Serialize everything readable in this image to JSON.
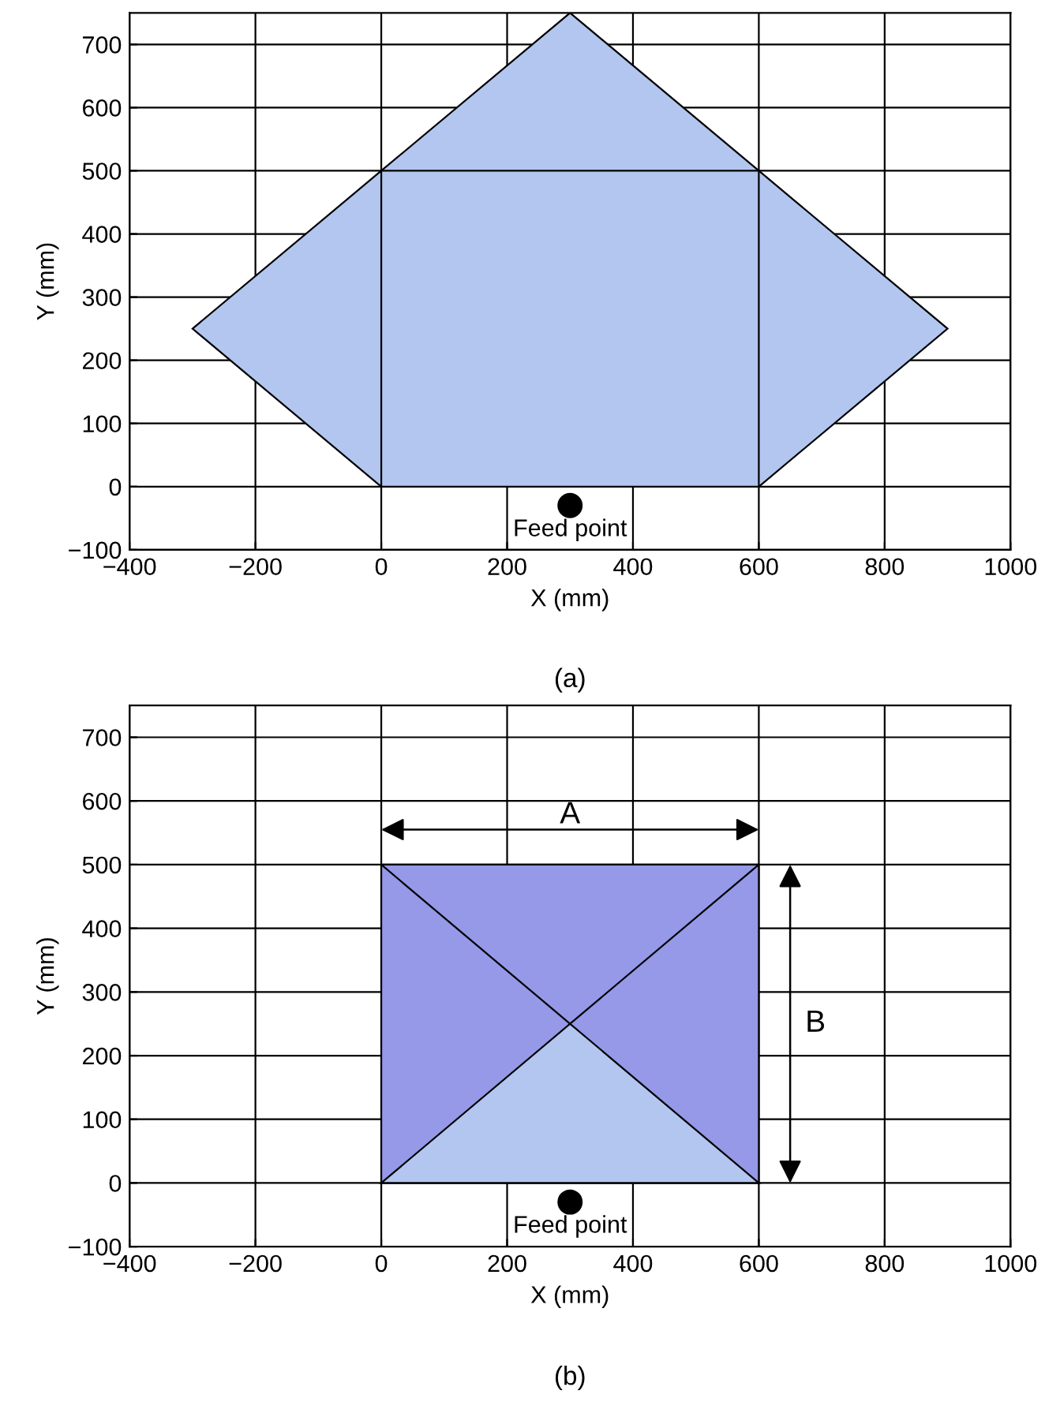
{
  "chart_data": [
    {
      "type": "area",
      "xlabel": "X (mm)",
      "ylabel": "Y (mm)",
      "xlim": [
        -400,
        1000
      ],
      "ylim": [
        -100,
        750
      ],
      "xticks": [
        -400,
        -200,
        0,
        200,
        400,
        600,
        800,
        1000
      ],
      "yticks": [
        -100,
        0,
        100,
        200,
        300,
        400,
        500,
        600,
        700
      ],
      "grid": true,
      "series": [
        {
          "color": "#b3c6f0",
          "x": [
            -300,
            0,
            300,
            600,
            900,
            600,
            0
          ],
          "values": [
            250,
            500,
            750,
            500,
            250,
            0,
            0
          ]
        },
        {
          "type": "scatter",
          "color": "#000000",
          "x": [
            300
          ],
          "values": [
            -30
          ]
        }
      ],
      "annotations": [
        {
          "text": "Feed point",
          "x": 300,
          "y": -30
        },
        "(a)"
      ]
    },
    {
      "type": "area",
      "xlabel": "X (mm)",
      "ylabel": "Y (mm)",
      "xlim": [
        -400,
        1000
      ],
      "ylim": [
        -100,
        750
      ],
      "xticks": [
        -400,
        -200,
        0,
        200,
        400,
        600,
        800,
        1000
      ],
      "yticks": [
        -100,
        0,
        100,
        200,
        300,
        400,
        500,
        600,
        700
      ],
      "grid": true,
      "series": [
        {
          "color": "#9599e8",
          "x": [
            0,
            600,
            600,
            0
          ],
          "values": [
            0,
            0,
            500,
            500
          ]
        },
        {
          "color": "#b3c6f0",
          "x": [
            0,
            300,
            600
          ],
          "values": [
            0,
            250,
            0
          ]
        },
        {
          "type": "scatter",
          "color": "#000000",
          "x": [
            300
          ],
          "values": [
            -30
          ]
        }
      ],
      "annotations": [
        "A",
        "B",
        {
          "text": "Feed point",
          "x": 300,
          "y": -30
        },
        "(b)"
      ]
    }
  ]
}
